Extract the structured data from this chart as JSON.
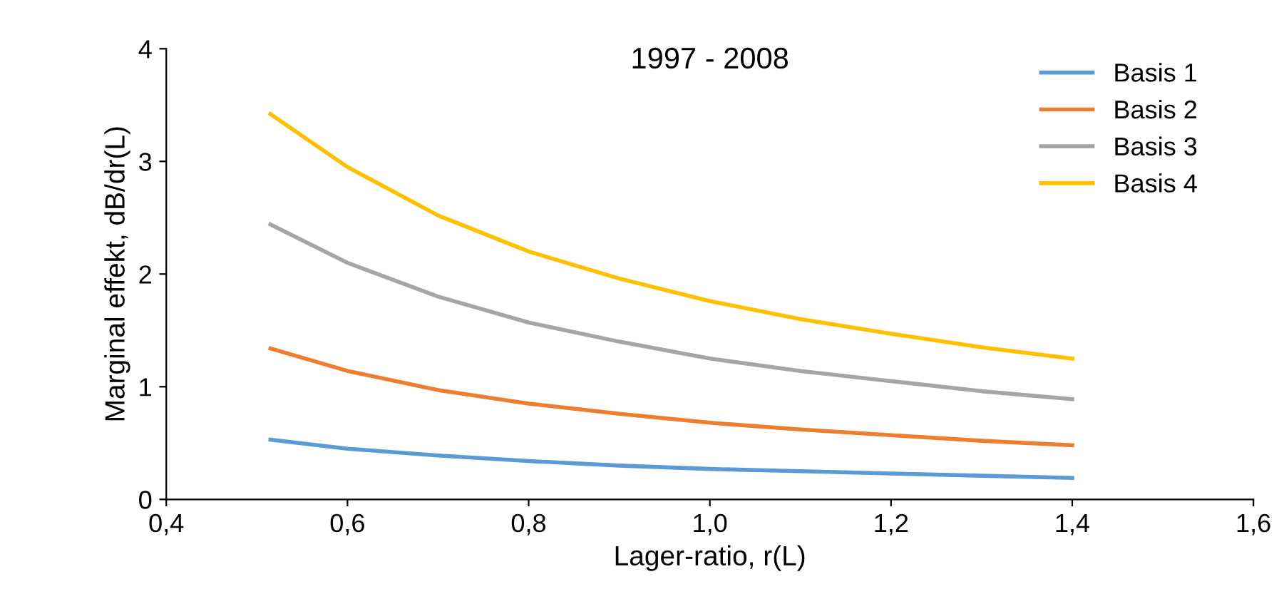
{
  "chart_data": {
    "type": "line",
    "title": "1997 - 2008",
    "xlabel": "Lager-ratio, r(L)",
    "ylabel": "Marginal effekt, dB/dr(L)",
    "x": [
      0.515,
      0.6,
      0.7,
      0.8,
      0.9,
      1.0,
      1.1,
      1.2,
      1.3,
      1.4
    ],
    "series": [
      {
        "name": "Basis 1",
        "color": "#5b9bd5",
        "values": [
          0.53,
          0.45,
          0.39,
          0.34,
          0.3,
          0.27,
          0.25,
          0.23,
          0.21,
          0.19
        ]
      },
      {
        "name": "Basis 2",
        "color": "#ed7d31",
        "values": [
          1.34,
          1.14,
          0.97,
          0.85,
          0.76,
          0.68,
          0.62,
          0.57,
          0.52,
          0.48
        ]
      },
      {
        "name": "Basis 3",
        "color": "#a5a5a5",
        "values": [
          2.44,
          2.1,
          1.8,
          1.57,
          1.4,
          1.25,
          1.14,
          1.05,
          0.96,
          0.89
        ]
      },
      {
        "name": "Basis 4",
        "color": "#ffc000",
        "values": [
          3.42,
          2.95,
          2.52,
          2.2,
          1.96,
          1.76,
          1.6,
          1.47,
          1.35,
          1.25
        ]
      }
    ],
    "xlim": [
      0.4,
      1.6
    ],
    "ylim": [
      0,
      4
    ],
    "xticks": [
      {
        "value": 0.4,
        "label": "0,4"
      },
      {
        "value": 0.6,
        "label": "0,6"
      },
      {
        "value": 0.8,
        "label": "0,8"
      },
      {
        "value": 1.0,
        "label": "1,0"
      },
      {
        "value": 1.2,
        "label": "1,2"
      },
      {
        "value": 1.4,
        "label": "1,4"
      },
      {
        "value": 1.6,
        "label": "1,6"
      }
    ],
    "yticks": [
      0,
      1,
      2,
      3,
      4
    ],
    "grid": false,
    "legend": "top right",
    "marker": "none",
    "line_style": "solid"
  }
}
